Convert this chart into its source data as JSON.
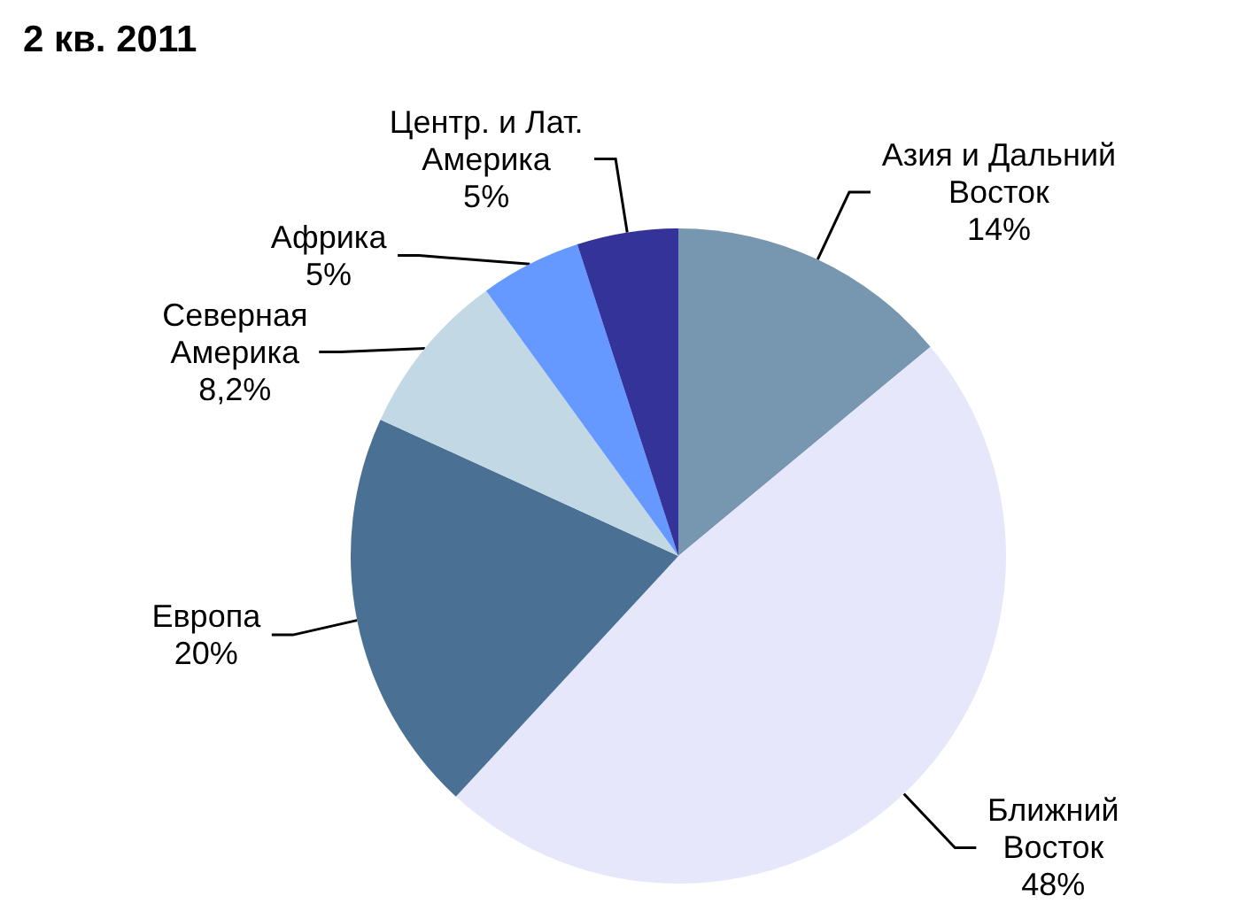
{
  "chart_data": {
    "type": "pie",
    "title": "2 кв. 2011",
    "categories": [
      "Азия и Дальний Восток",
      "Ближний Восток",
      "Европа",
      "Северная Америка",
      "Африка",
      "Центр. и Лат. Америка"
    ],
    "values": [
      14,
      48,
      20,
      8.2,
      5,
      5
    ],
    "value_labels": [
      "14%",
      "48%",
      "20%",
      "8,2%",
      "5%",
      "5%"
    ],
    "colors": [
      "#7796b0",
      "#e7e7fc",
      "#4a7094",
      "#c2d9e5",
      "#6699ff",
      "#333399"
    ],
    "legend": false
  }
}
